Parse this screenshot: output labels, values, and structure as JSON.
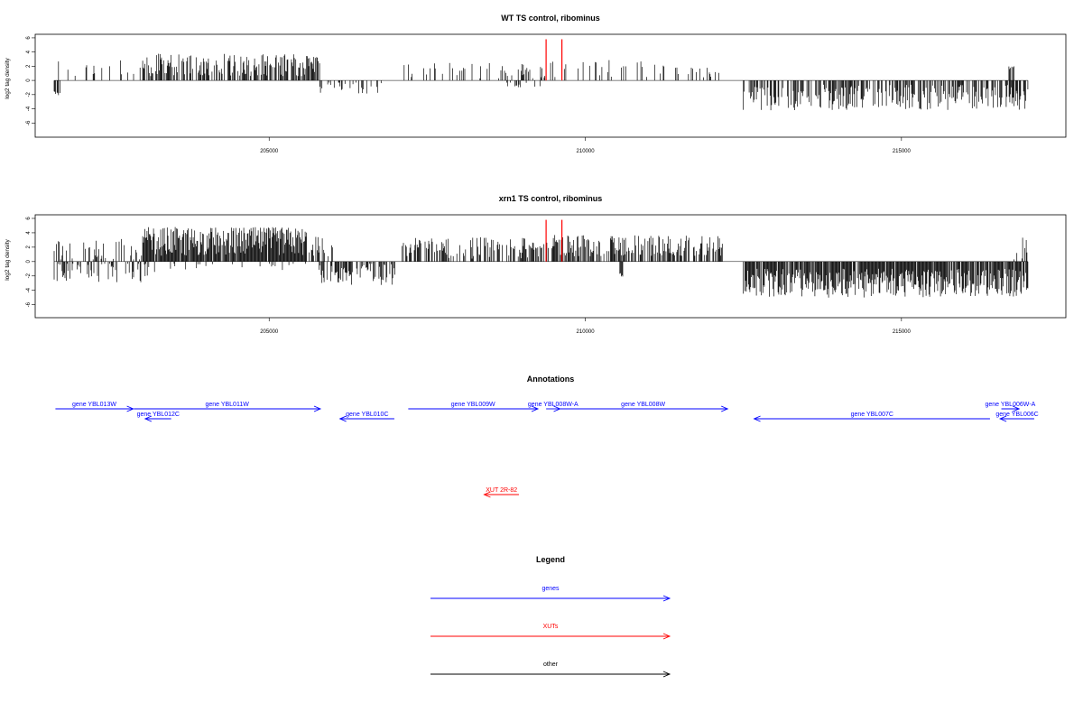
{
  "chart_data": [
    {
      "type": "bar",
      "title": "WT TS control, ribominus",
      "ylabel": "log2 tag density",
      "xlim": [
        201300,
        217600
      ],
      "ylim": [
        -8,
        6.5
      ],
      "yticks": [
        -6,
        -4,
        -2,
        0,
        2,
        4,
        6
      ],
      "xticks": [
        205000,
        210000,
        215000
      ],
      "xtick_labels": [
        "205000",
        "210000",
        "215000"
      ],
      "grid": false,
      "series": [
        {
          "strand": "plus",
          "segments": [
            {
              "start": 201600,
              "end": 203000,
              "mean": 1.6,
              "spread": 1.4,
              "density": 0.18
            },
            {
              "start": 203000,
              "end": 205800,
              "mean": 2.2,
              "spread": 1.6,
              "density": 0.65
            },
            {
              "start": 207100,
              "end": 209200,
              "mean": 1.3,
              "spread": 1.2,
              "density": 0.22
            },
            {
              "start": 209200,
              "end": 211300,
              "mean": 1.8,
              "spread": 1.4,
              "density": 0.15
            },
            {
              "start": 211300,
              "end": 212300,
              "mean": 1.1,
              "spread": 0.8,
              "density": 0.22
            },
            {
              "start": 216700,
              "end": 216800,
              "mean": 1.8,
              "spread": 0.3,
              "density": 0.6
            }
          ]
        },
        {
          "strand": "minus",
          "segments": [
            {
              "start": 201600,
              "end": 201700,
              "mean": -1.8,
              "spread": 0.3,
              "density": 0.6
            },
            {
              "start": 205800,
              "end": 206800,
              "mean": -1.0,
              "spread": 1.0,
              "density": 0.25
            },
            {
              "start": 208700,
              "end": 209400,
              "mean": -0.6,
              "spread": 0.4,
              "density": 0.12
            },
            {
              "start": 212500,
              "end": 217000,
              "mean": -2.4,
              "spread": 1.8,
              "density": 0.6
            }
          ]
        },
        {
          "strand": "marker",
          "color": "#ff0000",
          "bars": [
            {
              "x": 209380,
              "y": 5.8
            },
            {
              "x": 209630,
              "y": 5.8
            }
          ]
        }
      ]
    },
    {
      "type": "bar",
      "title": "xrn1 TS control, ribominus",
      "ylabel": "log2 tag density",
      "xlim": [
        201300,
        217600
      ],
      "ylim": [
        -7.8,
        6.5
      ],
      "yticks": [
        -6,
        -4,
        -2,
        0,
        2,
        4,
        6
      ],
      "xticks": [
        205000,
        210000,
        215000
      ],
      "xtick_labels": [
        "205000",
        "210000",
        "215000"
      ],
      "grid": false,
      "series": [
        {
          "strand": "plus",
          "segments": [
            {
              "start": 201600,
              "end": 203000,
              "mean": 1.6,
              "spread": 1.6,
              "density": 0.3
            },
            {
              "start": 203000,
              "end": 205600,
              "mean": 2.8,
              "spread": 2.0,
              "density": 0.95
            },
            {
              "start": 205600,
              "end": 206000,
              "mean": 2.0,
              "spread": 1.5,
              "density": 0.6
            },
            {
              "start": 207100,
              "end": 209300,
              "mean": 1.9,
              "spread": 1.5,
              "density": 0.55
            },
            {
              "start": 209300,
              "end": 212200,
              "mean": 2.2,
              "spread": 1.5,
              "density": 0.6
            },
            {
              "start": 216700,
              "end": 217000,
              "mean": 1.8,
              "spread": 1.8,
              "density": 0.3
            }
          ]
        },
        {
          "strand": "minus",
          "segments": [
            {
              "start": 201600,
              "end": 203200,
              "mean": -1.4,
              "spread": 1.5,
              "density": 0.35
            },
            {
              "start": 203200,
              "end": 205800,
              "mean": -0.6,
              "spread": 0.6,
              "density": 0.1
            },
            {
              "start": 205800,
              "end": 207000,
              "mean": -1.8,
              "spread": 1.5,
              "density": 0.55
            },
            {
              "start": 210500,
              "end": 210600,
              "mean": -2.0,
              "spread": 0.4,
              "density": 0.6
            },
            {
              "start": 212500,
              "end": 217000,
              "mean": -3.0,
              "spread": 2.0,
              "density": 0.9
            }
          ]
        },
        {
          "strand": "marker",
          "color": "#ff0000",
          "bars": [
            {
              "x": 209380,
              "y": 5.8
            },
            {
              "x": 209630,
              "y": 5.8
            }
          ]
        }
      ]
    }
  ],
  "annotations": {
    "title": "Annotations",
    "xlim": [
      201300,
      217600
    ],
    "genes": [
      {
        "label": "gene YBL013W",
        "start": 201620,
        "end": 202850,
        "strand": "+",
        "row": 0,
        "color": "#0000ff"
      },
      {
        "label": "gene YBL012C",
        "start": 203040,
        "end": 203450,
        "strand": "-",
        "row": 1,
        "color": "#0000ff"
      },
      {
        "label": "gene YBL011W",
        "start": 202860,
        "end": 205810,
        "strand": "+",
        "row": 0,
        "color": "#0000ff"
      },
      {
        "label": "gene YBL010C",
        "start": 206120,
        "end": 206980,
        "strand": "-",
        "row": 1,
        "color": "#0000ff"
      },
      {
        "label": "gene YBL009W",
        "start": 207200,
        "end": 209250,
        "strand": "+",
        "row": 0,
        "color": "#0000ff"
      },
      {
        "label": "gene YBL008W-A",
        "start": 209380,
        "end": 209600,
        "strand": "+",
        "row": 0,
        "color": "#0000ff"
      },
      {
        "label": "gene YBL008W",
        "start": 209580,
        "end": 212250,
        "strand": "+",
        "row": 0,
        "color": "#0000ff"
      },
      {
        "label": "gene YBL007C",
        "start": 212670,
        "end": 216400,
        "strand": "-",
        "row": 1,
        "color": "#0000ff"
      },
      {
        "label": "gene YBL006W-A",
        "start": 216580,
        "end": 216860,
        "strand": "+",
        "row": 0,
        "color": "#0000ff"
      },
      {
        "label": "gene YBL006C",
        "start": 216560,
        "end": 217100,
        "strand": "-",
        "row": 1,
        "color": "#0000ff"
      }
    ],
    "xuts": [
      {
        "label": "XUT 2R-82",
        "start": 208400,
        "end": 208950,
        "strand": "-",
        "color": "#ff0000"
      }
    ]
  },
  "legend": {
    "title": "Legend",
    "items": [
      {
        "label": "genes",
        "color": "#0000ff"
      },
      {
        "label": "XUTs",
        "color": "#ff0000"
      },
      {
        "label": "other",
        "color": "#000000"
      }
    ]
  }
}
